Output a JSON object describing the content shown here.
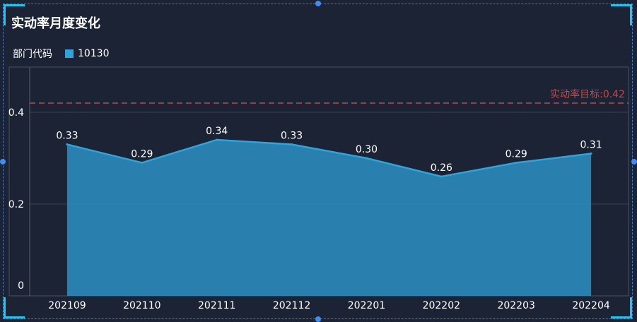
{
  "title": "实动率月度变化",
  "legend": {
    "title": "部门代码",
    "series_name": "10130"
  },
  "colors": {
    "series": "#2fa3db",
    "area": "#2a86b6",
    "target": "#c64848",
    "axis_text": "#ffffff",
    "grid": "#3b4250"
  },
  "chart_data": {
    "type": "area",
    "title": "实动率月度变化",
    "legend_title": "部门代码",
    "categories": [
      "202109",
      "202110",
      "202111",
      "202112",
      "202201",
      "202202",
      "202203",
      "202204"
    ],
    "series": [
      {
        "name": "10130",
        "values": [
          0.33,
          0.29,
          0.34,
          0.33,
          0.3,
          0.26,
          0.29,
          0.31
        ]
      }
    ],
    "value_labels": [
      "0.33",
      "0.29",
      "0.34",
      "0.33",
      "0.30",
      "0.26",
      "0.29",
      "0.31"
    ],
    "y_ticks": [
      0,
      0.2,
      0.4
    ],
    "y_tick_labels": [
      "0",
      "0.2",
      "0.4"
    ],
    "ylim": [
      0,
      0.5
    ],
    "target": {
      "value": 0.42,
      "label": "实动率目标:0.42"
    },
    "grid": true,
    "legend_position": "top-left"
  }
}
